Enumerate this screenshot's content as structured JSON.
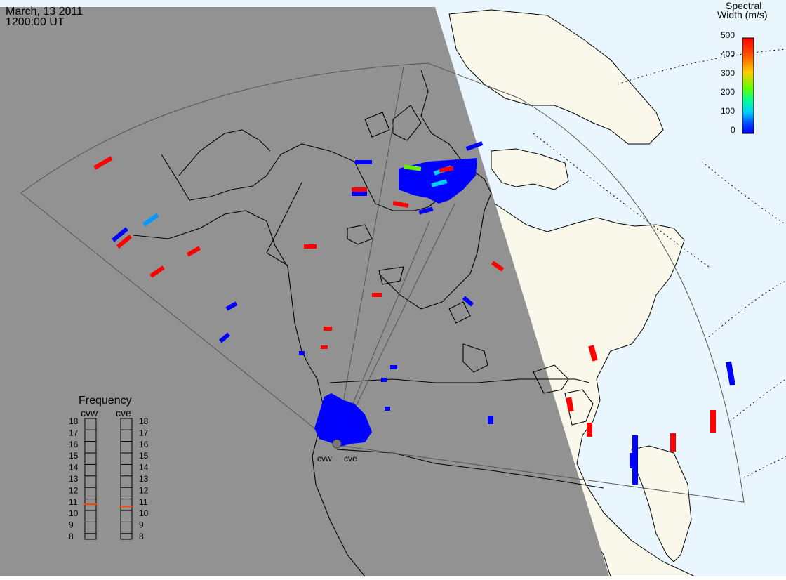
{
  "header": {
    "date": "March, 13 2011",
    "time": "1200:00 UT"
  },
  "colorbar": {
    "title_line1": "Spectral",
    "title_line2": "Width (m/s)",
    "ticks": [
      "500",
      "400",
      "300",
      "200",
      "100",
      "0"
    ],
    "colors": [
      "#ff0000",
      "#ff6600",
      "#ffcc00",
      "#99ff00",
      "#00ff66",
      "#00e5ff",
      "#0066ff",
      "#0000ff"
    ]
  },
  "frequency_panel": {
    "title": "Frequency",
    "radars": [
      {
        "label": "cvw",
        "value_mhz": 10.8,
        "marker_color": "#ff4400"
      },
      {
        "label": "cve",
        "value_mhz": 10.6,
        "marker_color": "#ff4400"
      }
    ],
    "scale": [
      "18",
      "17",
      "16",
      "15",
      "14",
      "13",
      "12",
      "11",
      "10",
      "9",
      "8"
    ]
  },
  "radar_sites": [
    {
      "label": "cvw"
    },
    {
      "label": "cve"
    }
  ],
  "colors": {
    "night": "#929292",
    "day_ocean": "#eaf6fd",
    "day_land": "#f9f8ea",
    "echo_low": "#0000ff",
    "echo_high": "#ff0000"
  }
}
